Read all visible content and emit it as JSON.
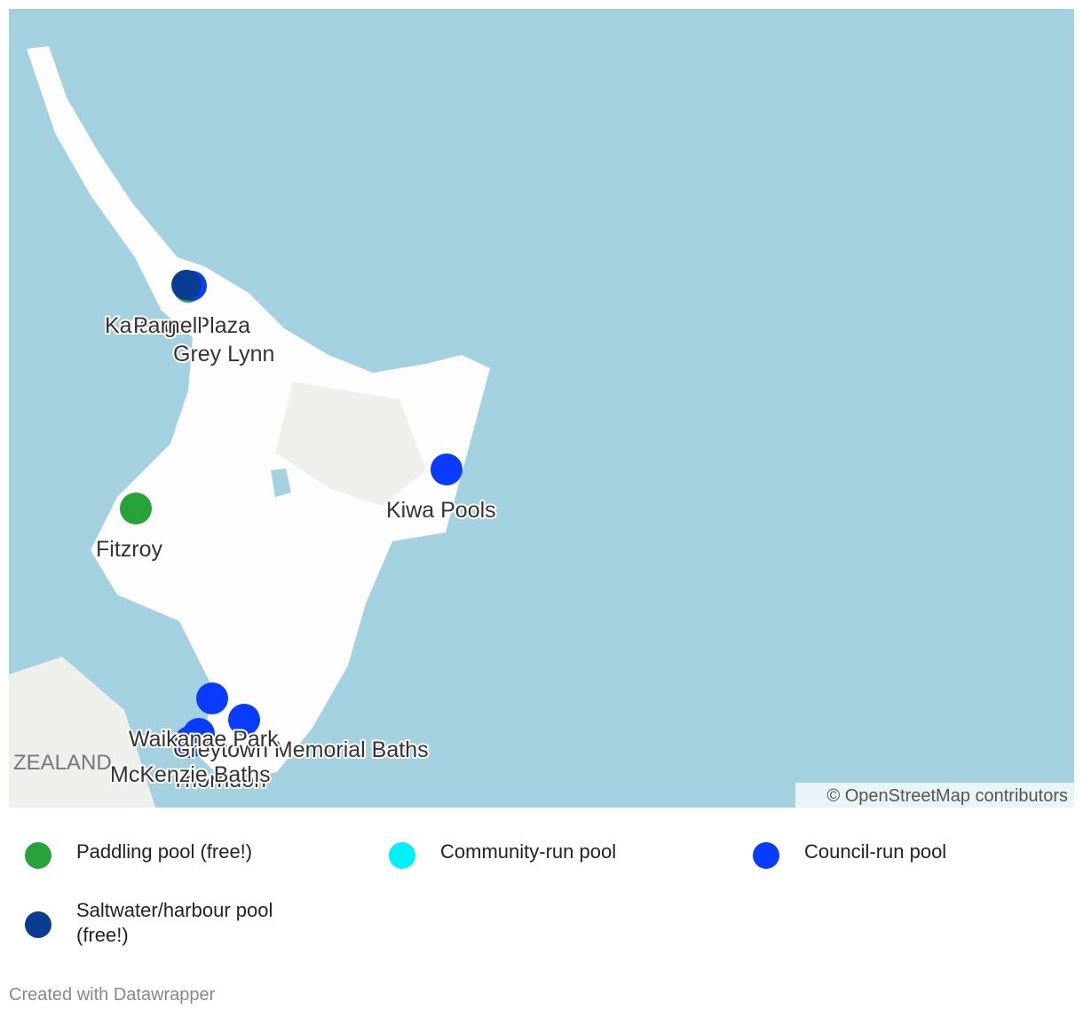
{
  "map": {
    "labels": [
      "Karanga Plaza",
      "Parnell",
      "Grey Lynn",
      "Fitzroy",
      "Kiwa Pools",
      "Waikanae Park",
      "Greytown Memorial Baths",
      "McKenzie Baths",
      "Thorndon"
    ],
    "region_label": "ZEALAND",
    "attribution": "© OpenStreetMap contributors"
  },
  "legend": [
    "Paddling pool (free!)",
    "Community-run pool",
    "Council-run pool",
    "Saltwater/harbour pool (free!)"
  ],
  "footer": "Created with Datawrapper"
}
